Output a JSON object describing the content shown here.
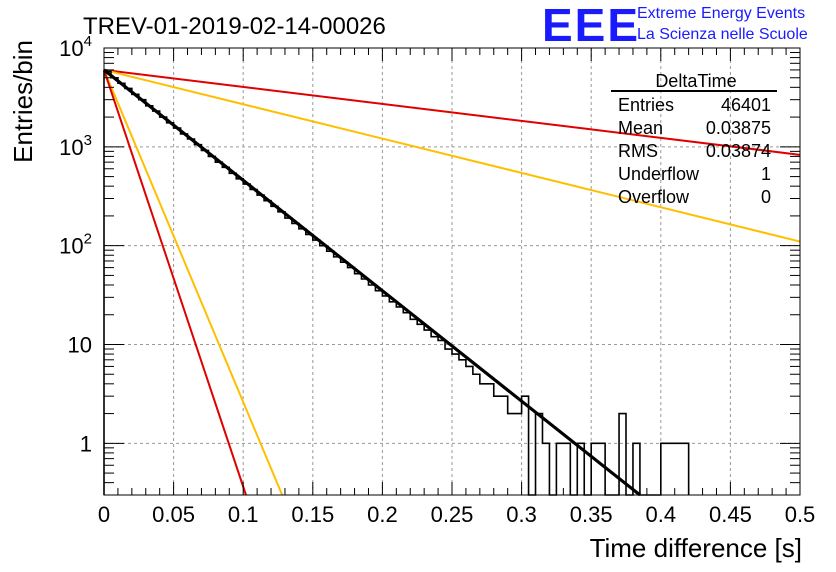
{
  "chart_data": {
    "type": "histogram",
    "title": "TREV-01-2019-02-14-00026",
    "xlabel": "Time difference [s]",
    "ylabel": "Entries/bin",
    "xlim": [
      0,
      0.5
    ],
    "ylim": [
      0.3,
      10000
    ],
    "y_scale": "log",
    "grid": true,
    "x_ticks": [
      "0",
      "0.05",
      "0.1",
      "0.15",
      "0.2",
      "0.25",
      "0.3",
      "0.35",
      "0.4",
      "0.45",
      "0.5"
    ],
    "y_ticks": [
      {
        "value": 1,
        "label": "1"
      },
      {
        "value": 10,
        "label": "10"
      },
      {
        "value": 100,
        "base": "10",
        "exp": "2"
      },
      {
        "value": 1000,
        "base": "10",
        "exp": "3"
      },
      {
        "value": 10000,
        "base": "10",
        "exp": "4"
      }
    ],
    "bin_width": 0.005,
    "bins": [
      {
        "x0": 0.0,
        "y": 5800
      },
      {
        "x0": 0.005,
        "y": 5000
      },
      {
        "x0": 0.01,
        "y": 4400
      },
      {
        "x0": 0.015,
        "y": 3900
      },
      {
        "x0": 0.02,
        "y": 3400
      },
      {
        "x0": 0.025,
        "y": 3000
      },
      {
        "x0": 0.03,
        "y": 2600
      },
      {
        "x0": 0.035,
        "y": 2300
      },
      {
        "x0": 0.04,
        "y": 2000
      },
      {
        "x0": 0.045,
        "y": 1750
      },
      {
        "x0": 0.05,
        "y": 1550
      },
      {
        "x0": 0.055,
        "y": 1350
      },
      {
        "x0": 0.06,
        "y": 1200
      },
      {
        "x0": 0.065,
        "y": 1050
      },
      {
        "x0": 0.07,
        "y": 920
      },
      {
        "x0": 0.075,
        "y": 800
      },
      {
        "x0": 0.08,
        "y": 700
      },
      {
        "x0": 0.085,
        "y": 620
      },
      {
        "x0": 0.09,
        "y": 540
      },
      {
        "x0": 0.095,
        "y": 475
      },
      {
        "x0": 0.1,
        "y": 420
      },
      {
        "x0": 0.105,
        "y": 370
      },
      {
        "x0": 0.11,
        "y": 325
      },
      {
        "x0": 0.115,
        "y": 285
      },
      {
        "x0": 0.12,
        "y": 250
      },
      {
        "x0": 0.125,
        "y": 220
      },
      {
        "x0": 0.13,
        "y": 190
      },
      {
        "x0": 0.135,
        "y": 168
      },
      {
        "x0": 0.14,
        "y": 148
      },
      {
        "x0": 0.145,
        "y": 130
      },
      {
        "x0": 0.15,
        "y": 114
      },
      {
        "x0": 0.155,
        "y": 100
      },
      {
        "x0": 0.16,
        "y": 88
      },
      {
        "x0": 0.165,
        "y": 77
      },
      {
        "x0": 0.17,
        "y": 68
      },
      {
        "x0": 0.175,
        "y": 60
      },
      {
        "x0": 0.18,
        "y": 52
      },
      {
        "x0": 0.185,
        "y": 46
      },
      {
        "x0": 0.19,
        "y": 40
      },
      {
        "x0": 0.195,
        "y": 35
      },
      {
        "x0": 0.2,
        "y": 31
      },
      {
        "x0": 0.205,
        "y": 27
      },
      {
        "x0": 0.21,
        "y": 24
      },
      {
        "x0": 0.215,
        "y": 21
      },
      {
        "x0": 0.22,
        "y": 18
      },
      {
        "x0": 0.225,
        "y": 16
      },
      {
        "x0": 0.23,
        "y": 14
      },
      {
        "x0": 0.235,
        "y": 12
      },
      {
        "x0": 0.24,
        "y": 11
      },
      {
        "x0": 0.245,
        "y": 9
      },
      {
        "x0": 0.25,
        "y": 8
      },
      {
        "x0": 0.255,
        "y": 7
      },
      {
        "x0": 0.26,
        "y": 6
      },
      {
        "x0": 0.265,
        "y": 5
      },
      {
        "x0": 0.27,
        "y": 4
      },
      {
        "x0": 0.275,
        "y": 4
      },
      {
        "x0": 0.28,
        "y": 3
      },
      {
        "x0": 0.285,
        "y": 3
      },
      {
        "x0": 0.29,
        "y": 2
      },
      {
        "x0": 0.295,
        "y": 2
      },
      {
        "x0": 0.3,
        "y": 3
      },
      {
        "x0": 0.305,
        "y": 0
      },
      {
        "x0": 0.31,
        "y": 2
      },
      {
        "x0": 0.315,
        "y": 1
      },
      {
        "x0": 0.32,
        "y": 0
      },
      {
        "x0": 0.325,
        "y": 1
      },
      {
        "x0": 0.33,
        "y": 1
      },
      {
        "x0": 0.335,
        "y": 0
      },
      {
        "x0": 0.34,
        "y": 1
      },
      {
        "x0": 0.345,
        "y": 0
      },
      {
        "x0": 0.35,
        "y": 1
      },
      {
        "x0": 0.355,
        "y": 1
      },
      {
        "x0": 0.36,
        "y": 0
      },
      {
        "x0": 0.365,
        "y": 0
      },
      {
        "x0": 0.37,
        "y": 2
      },
      {
        "x0": 0.375,
        "y": 0
      },
      {
        "x0": 0.38,
        "y": 1
      },
      {
        "x0": 0.385,
        "y": 0
      },
      {
        "x0": 0.39,
        "y": 0
      },
      {
        "x0": 0.395,
        "y": 0
      },
      {
        "x0": 0.4,
        "y": 1
      },
      {
        "x0": 0.405,
        "y": 1
      },
      {
        "x0": 0.41,
        "y": 1
      },
      {
        "x0": 0.415,
        "y": 1
      }
    ],
    "fit": {
      "color": "#000000",
      "x0": 0.0,
      "y0": 6000,
      "x1": 0.385,
      "y1": 0.3
    },
    "reference_lines": [
      {
        "color": "#e00000",
        "x0": 0.0,
        "y0": 6000,
        "x1": 0.5,
        "y1": 830
      },
      {
        "color": "#ffbf00",
        "x0": 0.0,
        "y0": 6000,
        "x1": 0.5,
        "y1": 110
      },
      {
        "color": "#ffbf00",
        "x0": 0.0,
        "y0": 6000,
        "x1": 0.128,
        "y1": 0.3
      },
      {
        "color": "#e00000",
        "x0": 0.0,
        "y0": 6000,
        "x1": 0.102,
        "y1": 0.3
      }
    ]
  },
  "stats": {
    "title": "DeltaTime",
    "rows": [
      {
        "label": "Entries",
        "value": "46401"
      },
      {
        "label": "Mean",
        "value": "0.03875"
      },
      {
        "label": "RMS",
        "value": "0.03874"
      },
      {
        "label": "Underflow",
        "value": "1"
      },
      {
        "label": "Overflow",
        "value": "0"
      }
    ]
  },
  "logo": {
    "text": "EEE",
    "line1": "Extreme Energy Events",
    "line2": "La Scienza nelle Scuole",
    "color": "#1a1aff"
  }
}
